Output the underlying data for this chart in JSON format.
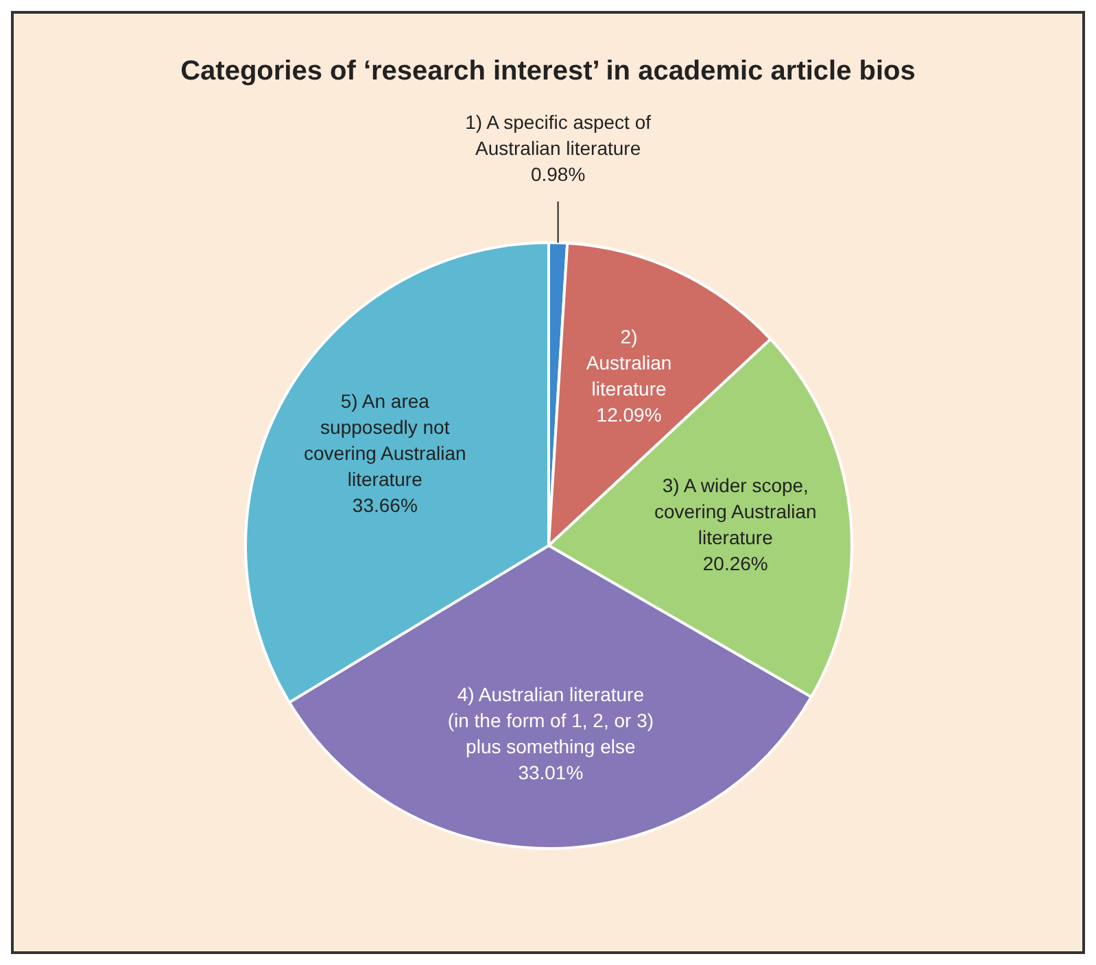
{
  "chart_data": {
    "type": "pie",
    "title": "Categories of ‘research interest’ in academic article bios",
    "categories": [
      "1) A specific aspect of Australian literature",
      "2) Australian literature",
      "3) A wider scope, covering Australian literature",
      "4) Australian literature (in the form of 1, 2, or 3) plus something else",
      "5) An area supposedly not covering Australian literature"
    ],
    "values": [
      0.98,
      12.09,
      20.26,
      33.01,
      33.66
    ],
    "value_labels": [
      "0.98%",
      "12.09%",
      "20.26%",
      "33.01%",
      "33.66%"
    ],
    "colors": [
      "#3b88cc",
      "#cf6c64",
      "#a4d279",
      "#8677b8",
      "#5cb9d1"
    ]
  }
}
